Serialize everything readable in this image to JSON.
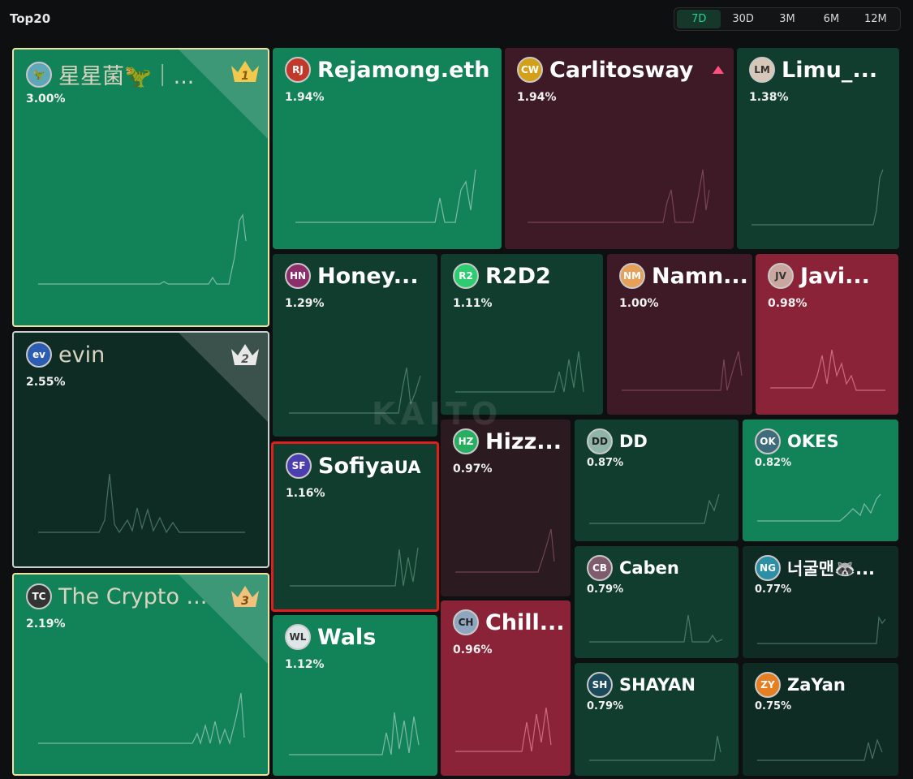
{
  "header": {
    "title": "Top20"
  },
  "ranges": [
    "7D",
    "30D",
    "3M",
    "6M",
    "12M"
  ],
  "active_range": "7D",
  "watermark": "KAITO",
  "tiles": [
    {
      "name": "星星菌🦖｜...",
      "pct": "3.00%",
      "rank": "1"
    },
    {
      "name": "evin",
      "pct": "2.55%",
      "rank": "2"
    },
    {
      "name": "The Crypto ...",
      "pct": "2.19%",
      "rank": "3"
    },
    {
      "name": "Rejamong.eth",
      "pct": "1.94%"
    },
    {
      "name": "Carlitosway",
      "pct": "1.94%"
    },
    {
      "name": "Limu_...",
      "pct": "1.38%"
    },
    {
      "name": "Honey...",
      "pct": "1.29%"
    },
    {
      "name": "R2D2",
      "pct": "1.11%"
    },
    {
      "name": "Namn...",
      "pct": "1.00%"
    },
    {
      "name": "Javi...",
      "pct": "0.98%"
    },
    {
      "name": "Sofiya",
      "name_suffix": "UA",
      "pct": "1.16%"
    },
    {
      "name": "Hizz...",
      "pct": "0.97%"
    },
    {
      "name": "DD",
      "pct": "0.87%"
    },
    {
      "name": "OKES",
      "pct": "0.82%"
    },
    {
      "name": "Caben",
      "pct": "0.79%"
    },
    {
      "name": "너굴맨🦝...",
      "pct": "0.77%"
    },
    {
      "name": "Wals",
      "pct": "1.12%"
    },
    {
      "name": "Chill...",
      "pct": "0.96%"
    },
    {
      "name": "SHAYAN",
      "pct": "0.79%"
    },
    {
      "name": "ZaYan",
      "pct": "0.75%"
    }
  ],
  "colors": {
    "green": "#128259",
    "dark_green": "#113d2e",
    "darker_green": "#0f2c24",
    "maroon": "#3d1a26",
    "crimson": "#8a2238",
    "gold_border": "#efe3a4",
    "highlight": "#e01e1e"
  }
}
